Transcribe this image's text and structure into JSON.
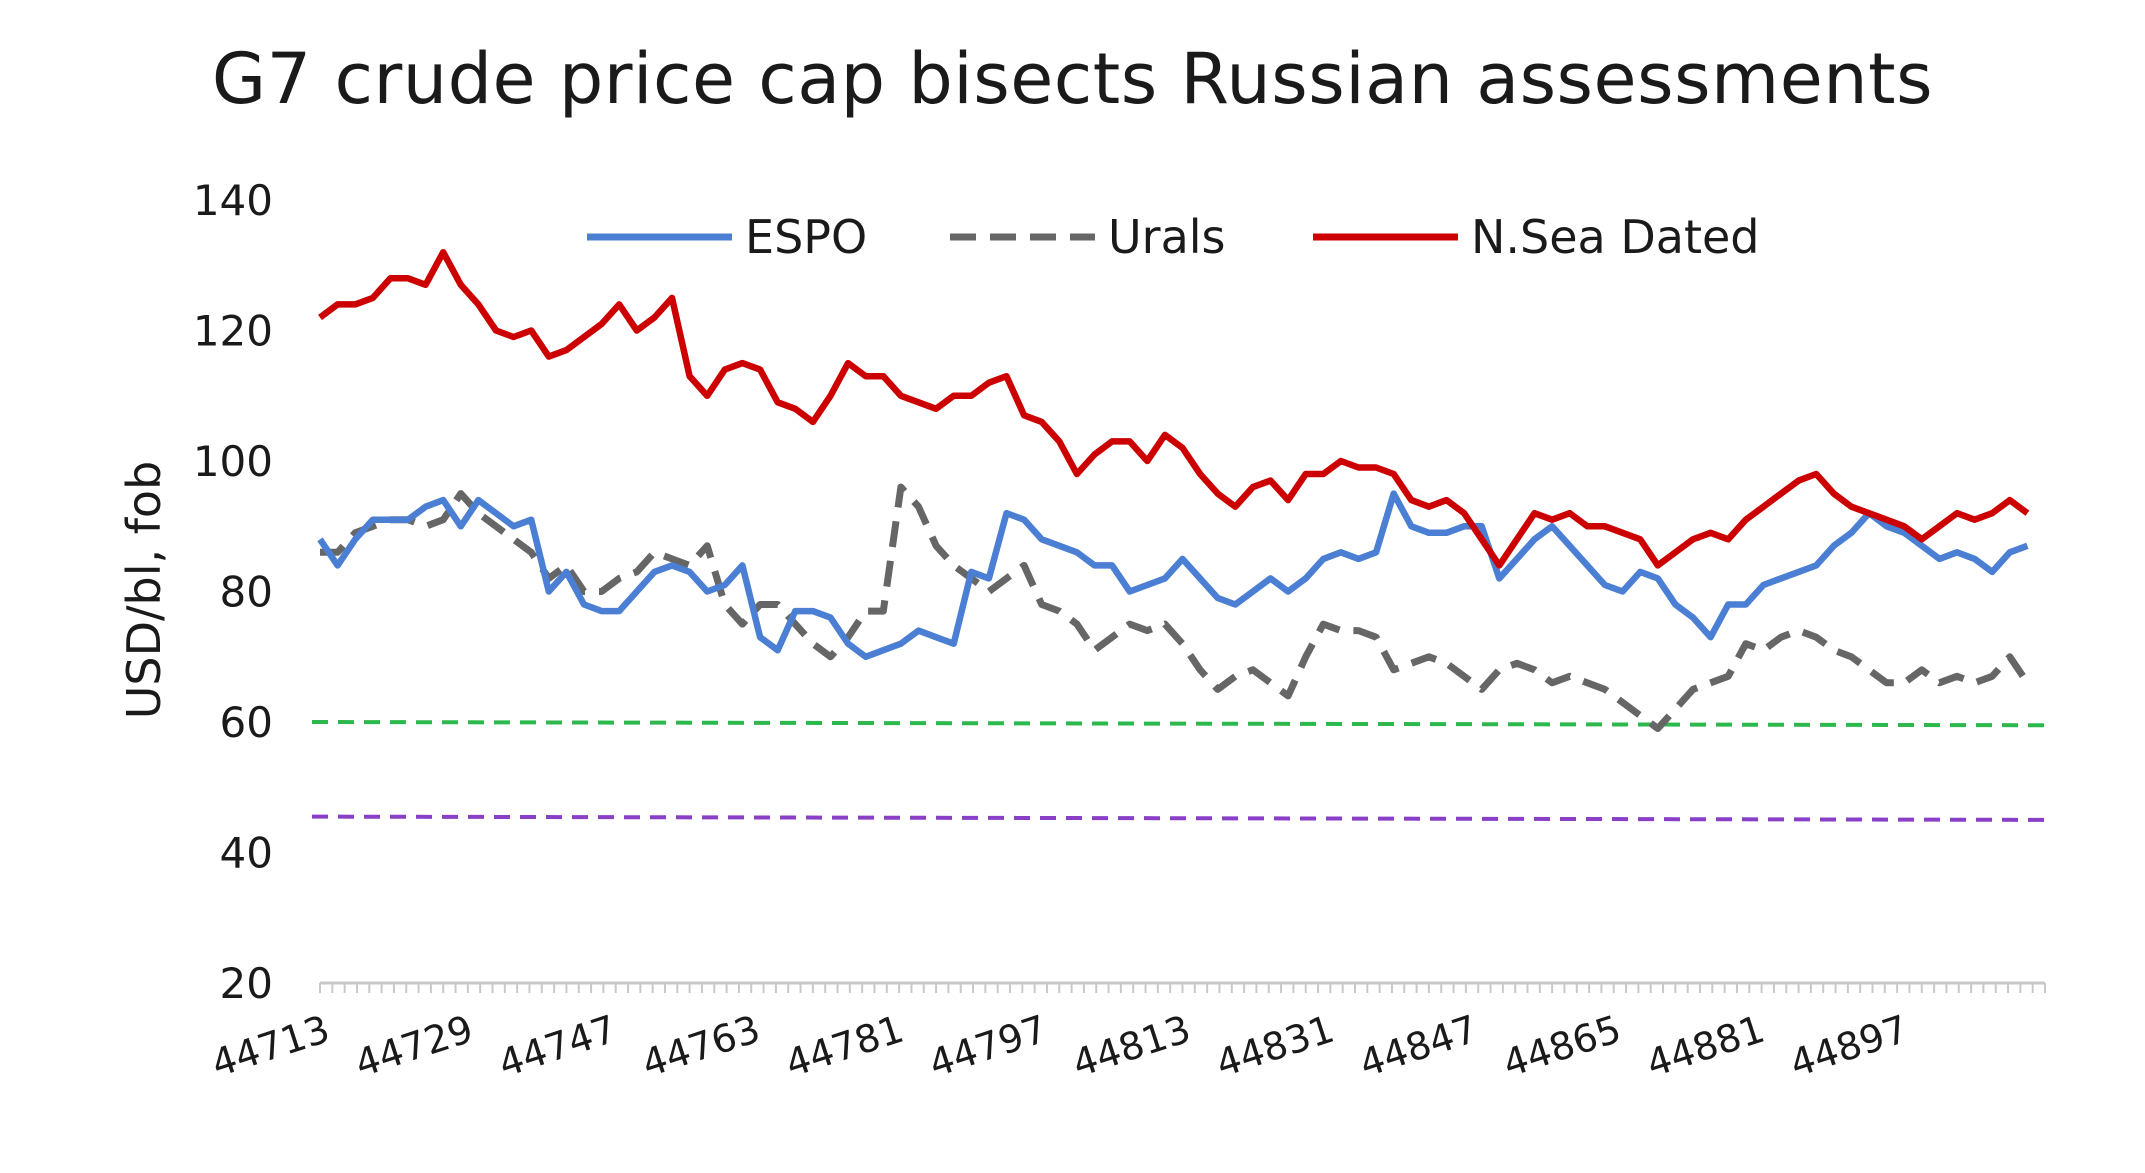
{
  "chart_data": {
    "type": "line",
    "title": "G7 crude price cap bisects Russian assessments",
    "ylabel": "USD/bl, fob",
    "xlabel": "",
    "ylim": [
      20,
      140
    ],
    "yticks": [
      20,
      40,
      60,
      80,
      100,
      120,
      140
    ],
    "xlim": [
      44713,
      44909
    ],
    "x_tick_labels": [
      "44713",
      "44729",
      "44747",
      "44763",
      "44781",
      "44797",
      "44813",
      "44831",
      "44847",
      "44865",
      "44881",
      "44897"
    ],
    "legend": "top",
    "grid": false,
    "colors": {
      "espo": "#4a7fd4",
      "urals": "#666666",
      "nsea": "#cc0000",
      "cap60": "#2db84d",
      "purple": "#8a3fc7",
      "axis": "#c8c8c8"
    },
    "reference_lines": [
      {
        "y_start": 60,
        "y_end": 59.5,
        "color": "#2db84d",
        "style": "dashed"
      },
      {
        "y_start": 45.5,
        "y_end": 45,
        "color": "#8a3fc7",
        "style": "dashed"
      }
    ],
    "series": [
      {
        "name": "ESPO",
        "style": "solid",
        "color": "#4a7fd4",
        "points": [
          [
            44713,
            88
          ],
          [
            44715,
            84
          ],
          [
            44717,
            88
          ],
          [
            44719,
            91
          ],
          [
            44721,
            91
          ],
          [
            44723,
            91
          ],
          [
            44725,
            93
          ],
          [
            44727,
            94
          ],
          [
            44729,
            90
          ],
          [
            44731,
            94
          ],
          [
            44733,
            92
          ],
          [
            44735,
            90
          ],
          [
            44737,
            91
          ],
          [
            44739,
            80
          ],
          [
            44741,
            83
          ],
          [
            44743,
            78
          ],
          [
            44745,
            77
          ],
          [
            44747,
            77
          ],
          [
            44749,
            80
          ],
          [
            44751,
            83
          ],
          [
            44753,
            84
          ],
          [
            44755,
            83
          ],
          [
            44757,
            80
          ],
          [
            44759,
            81
          ],
          [
            44761,
            84
          ],
          [
            44763,
            73
          ],
          [
            44765,
            71
          ],
          [
            44767,
            77
          ],
          [
            44769,
            77
          ],
          [
            44771,
            76
          ],
          [
            44773,
            72
          ],
          [
            44775,
            70
          ],
          [
            44777,
            71
          ],
          [
            44779,
            72
          ],
          [
            44781,
            74
          ],
          [
            44783,
            73
          ],
          [
            44785,
            72
          ],
          [
            44787,
            83
          ],
          [
            44789,
            82
          ],
          [
            44791,
            92
          ],
          [
            44793,
            91
          ],
          [
            44795,
            88
          ],
          [
            44797,
            87
          ],
          [
            44799,
            86
          ],
          [
            44801,
            84
          ],
          [
            44803,
            84
          ],
          [
            44805,
            80
          ],
          [
            44807,
            81
          ],
          [
            44809,
            82
          ],
          [
            44811,
            85
          ],
          [
            44813,
            82
          ],
          [
            44815,
            79
          ],
          [
            44817,
            78
          ],
          [
            44819,
            80
          ],
          [
            44821,
            82
          ],
          [
            44823,
            80
          ],
          [
            44825,
            82
          ],
          [
            44827,
            85
          ],
          [
            44829,
            86
          ],
          [
            44831,
            85
          ],
          [
            44833,
            86
          ],
          [
            44835,
            95
          ],
          [
            44837,
            90
          ],
          [
            44839,
            89
          ],
          [
            44841,
            89
          ],
          [
            44843,
            90
          ],
          [
            44845,
            90
          ],
          [
            44847,
            82
          ],
          [
            44849,
            85
          ],
          [
            44851,
            88
          ],
          [
            44853,
            90
          ],
          [
            44855,
            87
          ],
          [
            44857,
            84
          ],
          [
            44859,
            81
          ],
          [
            44861,
            80
          ],
          [
            44863,
            83
          ],
          [
            44865,
            82
          ],
          [
            44867,
            78
          ],
          [
            44869,
            76
          ],
          [
            44871,
            73
          ],
          [
            44873,
            78
          ],
          [
            44875,
            78
          ],
          [
            44877,
            81
          ],
          [
            44879,
            82
          ],
          [
            44881,
            83
          ],
          [
            44883,
            84
          ],
          [
            44885,
            87
          ],
          [
            44887,
            89
          ],
          [
            44889,
            92
          ],
          [
            44891,
            90
          ],
          [
            44893,
            89
          ],
          [
            44895,
            87
          ],
          [
            44897,
            85
          ],
          [
            44899,
            86
          ],
          [
            44901,
            85
          ],
          [
            44903,
            83
          ],
          [
            44905,
            86
          ],
          [
            44907,
            87
          ]
        ]
      },
      {
        "name": "Urals",
        "style": "dashed",
        "color": "#666666",
        "points": [
          [
            44713,
            86
          ],
          [
            44715,
            86
          ],
          [
            44717,
            89
          ],
          [
            44719,
            90
          ],
          [
            44721,
            91
          ],
          [
            44723,
            91
          ],
          [
            44725,
            90
          ],
          [
            44727,
            91
          ],
          [
            44729,
            95
          ],
          [
            44731,
            92
          ],
          [
            44733,
            90
          ],
          [
            44735,
            88
          ],
          [
            44737,
            86
          ],
          [
            44739,
            82
          ],
          [
            44741,
            84
          ],
          [
            44743,
            80
          ],
          [
            44745,
            80
          ],
          [
            44747,
            82
          ],
          [
            44749,
            83
          ],
          [
            44751,
            86
          ],
          [
            44753,
            85
          ],
          [
            44755,
            84
          ],
          [
            44757,
            87
          ],
          [
            44759,
            78
          ],
          [
            44761,
            75
          ],
          [
            44763,
            78
          ],
          [
            44765,
            78
          ],
          [
            44767,
            75
          ],
          [
            44769,
            72
          ],
          [
            44771,
            70
          ],
          [
            44773,
            73
          ],
          [
            44775,
            77
          ],
          [
            44777,
            77
          ],
          [
            44779,
            96
          ],
          [
            44781,
            93
          ],
          [
            44783,
            87
          ],
          [
            44785,
            84
          ],
          [
            44787,
            82
          ],
          [
            44789,
            80
          ],
          [
            44791,
            82
          ],
          [
            44793,
            84
          ],
          [
            44795,
            78
          ],
          [
            44797,
            77
          ],
          [
            44799,
            75
          ],
          [
            44801,
            71
          ],
          [
            44803,
            73
          ],
          [
            44805,
            75
          ],
          [
            44807,
            74
          ],
          [
            44809,
            75
          ],
          [
            44811,
            72
          ],
          [
            44813,
            68
          ],
          [
            44815,
            65
          ],
          [
            44817,
            67
          ],
          [
            44819,
            68
          ],
          [
            44821,
            66
          ],
          [
            44823,
            64
          ],
          [
            44825,
            70
          ],
          [
            44827,
            75
          ],
          [
            44829,
            74
          ],
          [
            44831,
            74
          ],
          [
            44833,
            73
          ],
          [
            44835,
            68
          ],
          [
            44837,
            69
          ],
          [
            44839,
            70
          ],
          [
            44841,
            69
          ],
          [
            44843,
            67
          ],
          [
            44845,
            65
          ],
          [
            44847,
            68
          ],
          [
            44849,
            69
          ],
          [
            44851,
            68
          ],
          [
            44853,
            66
          ],
          [
            44855,
            67
          ],
          [
            44857,
            66
          ],
          [
            44859,
            65
          ],
          [
            44861,
            63
          ],
          [
            44863,
            61
          ],
          [
            44865,
            59
          ],
          [
            44867,
            62
          ],
          [
            44869,
            65
          ],
          [
            44871,
            66
          ],
          [
            44873,
            67
          ],
          [
            44875,
            72
          ],
          [
            44877,
            71
          ],
          [
            44879,
            73
          ],
          [
            44881,
            74
          ],
          [
            44883,
            73
          ],
          [
            44885,
            71
          ],
          [
            44887,
            70
          ],
          [
            44889,
            68
          ],
          [
            44891,
            66
          ],
          [
            44893,
            66
          ],
          [
            44895,
            68
          ],
          [
            44897,
            66
          ],
          [
            44899,
            67
          ],
          [
            44901,
            66
          ],
          [
            44903,
            67
          ],
          [
            44905,
            70
          ],
          [
            44907,
            66
          ]
        ]
      },
      {
        "name": "N.Sea Dated",
        "style": "solid",
        "color": "#cc0000",
        "points": [
          [
            44713,
            122
          ],
          [
            44715,
            124
          ],
          [
            44717,
            124
          ],
          [
            44719,
            125
          ],
          [
            44721,
            128
          ],
          [
            44723,
            128
          ],
          [
            44725,
            127
          ],
          [
            44727,
            132
          ],
          [
            44729,
            127
          ],
          [
            44731,
            124
          ],
          [
            44733,
            120
          ],
          [
            44735,
            119
          ],
          [
            44737,
            120
          ],
          [
            44739,
            116
          ],
          [
            44741,
            117
          ],
          [
            44743,
            119
          ],
          [
            44745,
            121
          ],
          [
            44747,
            124
          ],
          [
            44749,
            120
          ],
          [
            44751,
            122
          ],
          [
            44753,
            125
          ],
          [
            44755,
            113
          ],
          [
            44757,
            110
          ],
          [
            44759,
            114
          ],
          [
            44761,
            115
          ],
          [
            44763,
            114
          ],
          [
            44765,
            109
          ],
          [
            44767,
            108
          ],
          [
            44769,
            106
          ],
          [
            44771,
            110
          ],
          [
            44773,
            115
          ],
          [
            44775,
            113
          ],
          [
            44777,
            113
          ],
          [
            44779,
            110
          ],
          [
            44781,
            109
          ],
          [
            44783,
            108
          ],
          [
            44785,
            110
          ],
          [
            44787,
            110
          ],
          [
            44789,
            112
          ],
          [
            44791,
            113
          ],
          [
            44793,
            107
          ],
          [
            44795,
            106
          ],
          [
            44797,
            103
          ],
          [
            44799,
            98
          ],
          [
            44801,
            101
          ],
          [
            44803,
            103
          ],
          [
            44805,
            103
          ],
          [
            44807,
            100
          ],
          [
            44809,
            104
          ],
          [
            44811,
            102
          ],
          [
            44813,
            98
          ],
          [
            44815,
            95
          ],
          [
            44817,
            93
          ],
          [
            44819,
            96
          ],
          [
            44821,
            97
          ],
          [
            44823,
            94
          ],
          [
            44825,
            98
          ],
          [
            44827,
            98
          ],
          [
            44829,
            100
          ],
          [
            44831,
            99
          ],
          [
            44833,
            99
          ],
          [
            44835,
            98
          ],
          [
            44837,
            94
          ],
          [
            44839,
            93
          ],
          [
            44841,
            94
          ],
          [
            44843,
            92
          ],
          [
            44845,
            88
          ],
          [
            44847,
            84
          ],
          [
            44849,
            88
          ],
          [
            44851,
            92
          ],
          [
            44853,
            91
          ],
          [
            44855,
            92
          ],
          [
            44857,
            90
          ],
          [
            44859,
            90
          ],
          [
            44861,
            89
          ],
          [
            44863,
            88
          ],
          [
            44865,
            84
          ],
          [
            44867,
            86
          ],
          [
            44869,
            88
          ],
          [
            44871,
            89
          ],
          [
            44873,
            88
          ],
          [
            44875,
            91
          ],
          [
            44877,
            93
          ],
          [
            44879,
            95
          ],
          [
            44881,
            97
          ],
          [
            44883,
            98
          ],
          [
            44885,
            95
          ],
          [
            44887,
            93
          ],
          [
            44889,
            92
          ],
          [
            44891,
            91
          ],
          [
            44893,
            90
          ],
          [
            44895,
            88
          ],
          [
            44897,
            90
          ],
          [
            44899,
            92
          ],
          [
            44901,
            91
          ],
          [
            44903,
            92
          ],
          [
            44905,
            94
          ],
          [
            44907,
            92
          ]
        ]
      }
    ]
  }
}
